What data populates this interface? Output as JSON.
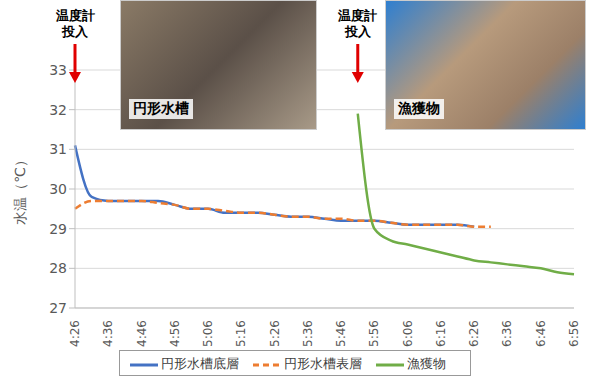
{
  "chart_data": {
    "type": "line",
    "y_label": "水温（℃）",
    "categories": [
      "4:26",
      null,
      "4:36",
      null,
      "4:46",
      null,
      "4:56",
      null,
      "5:06",
      null,
      "5:16",
      null,
      "5:26",
      null,
      "5:36",
      null,
      "5:46",
      null,
      "5:56",
      null,
      "6:06",
      null,
      "6:16",
      null,
      "6:26",
      null,
      "6:36",
      null,
      "6:46",
      null,
      "6:56"
    ],
    "series": [
      {
        "name": "円形水槽底層",
        "color": "#4472c4",
        "line_style": "solid",
        "values": [
          31.1,
          29.8,
          29.7,
          29.7,
          29.7,
          29.7,
          29.6,
          29.5,
          29.5,
          29.4,
          29.4,
          29.4,
          29.35,
          29.3,
          29.3,
          29.25,
          29.2,
          29.2,
          29.2,
          29.15,
          29.1,
          29.1,
          29.1,
          29.1,
          29.05,
          null,
          null,
          null,
          null,
          null,
          null
        ]
      },
      {
        "name": "円形水槽表層",
        "color": "#ed7d31",
        "line_style": "dashed",
        "values": [
          29.5,
          29.7,
          29.7,
          29.7,
          29.7,
          29.65,
          29.6,
          29.5,
          29.5,
          29.45,
          29.4,
          29.4,
          29.35,
          29.3,
          29.3,
          29.25,
          29.25,
          29.2,
          29.2,
          29.15,
          29.1,
          29.1,
          29.1,
          29.1,
          29.05,
          29.05,
          null,
          null,
          null,
          null,
          null
        ]
      },
      {
        "name": "漁獲物",
        "color": "#70ad47",
        "line_style": "solid",
        "values": [
          null,
          null,
          null,
          null,
          null,
          null,
          null,
          null,
          null,
          null,
          null,
          null,
          null,
          null,
          null,
          null,
          null,
          31.9,
          29.0,
          28.7,
          28.6,
          28.5,
          28.4,
          28.3,
          28.2,
          28.15,
          28.1,
          28.05,
          28.0,
          27.9,
          27.85
        ]
      }
    ],
    "ylim": [
      27,
      33
    ],
    "yticks": [
      27,
      28,
      29,
      30,
      31,
      32,
      33
    ],
    "grid": true,
    "legend": "bottom",
    "annotations": [
      {
        "text_lines": [
          "温度計",
          "投入"
        ],
        "at": 0
      },
      {
        "text_lines": [
          "温度計",
          "投入"
        ],
        "at": 17
      }
    ],
    "insets": [
      {
        "label": "円形水槽"
      },
      {
        "label": "漁獲物"
      }
    ]
  }
}
